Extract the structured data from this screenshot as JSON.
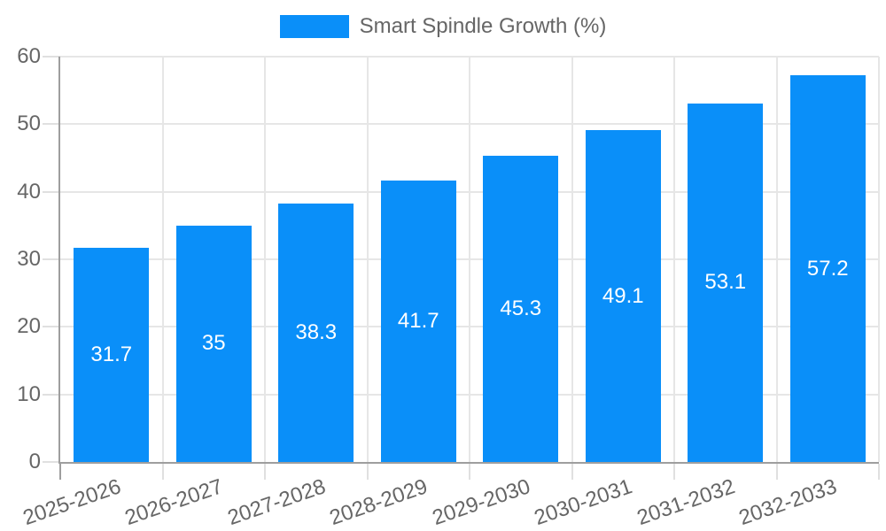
{
  "legend": {
    "label": "Smart Spindle Growth (%)"
  },
  "chart_data": {
    "type": "bar",
    "title": "",
    "series_name": "Smart Spindle Growth (%)",
    "categories": [
      "2025-2026",
      "2026-2027",
      "2027-2028",
      "2028-2029",
      "2029-2030",
      "2030-2031",
      "2031-2032",
      "2032-2033"
    ],
    "values": [
      31.7,
      35,
      38.3,
      41.7,
      45.3,
      49.1,
      53.1,
      57.2
    ],
    "value_labels": [
      "31.7",
      "35",
      "38.3",
      "41.7",
      "45.3",
      "49.1",
      "53.1",
      "57.2"
    ],
    "xlabel": "",
    "ylabel": "",
    "ylim": [
      0,
      60
    ],
    "yticks": [
      0,
      10,
      20,
      30,
      40,
      50,
      60
    ],
    "grid": true,
    "legend_position": "top",
    "x_label_rotation_deg": -19,
    "colors": {
      "bar": "#0a8ff9",
      "value_text": "#ffffff",
      "axis_text": "#666666",
      "gridline": "#e6e6e6",
      "tick": "#e0e0e0",
      "axis_line": "#9e9e9e"
    }
  }
}
